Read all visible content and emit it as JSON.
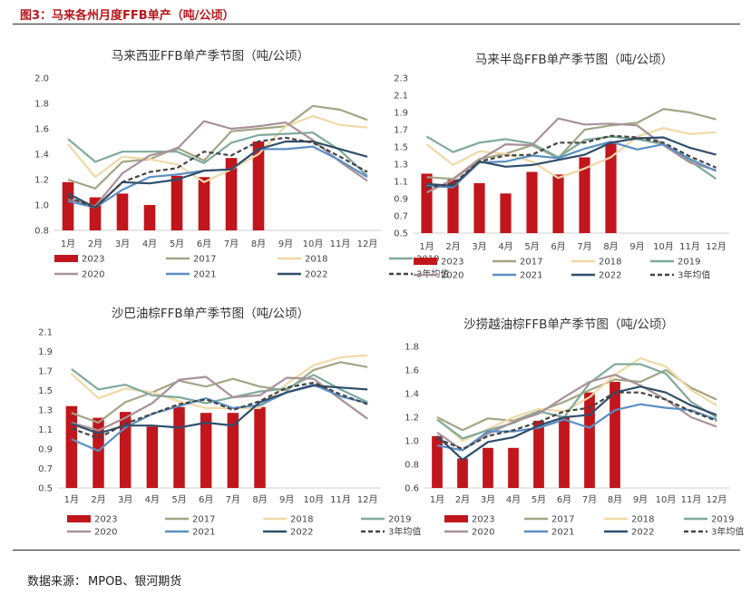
{
  "figure": {
    "title": "图3：马来各州月度FFB单产（吨/公顷）"
  },
  "source": {
    "label": "数据来源：",
    "value": "MPOB、银河期货"
  },
  "colors": {
    "2023": "#c0161c",
    "2017": "#a3a585",
    "2018": "#efd9a6",
    "2019": "#7faa9c",
    "2020": "#a89199",
    "2021": "#5b8fc3",
    "2022": "#2f4e6b",
    "avg": "#444444"
  },
  "chart_data": [
    {
      "type": "bar+line",
      "title": "马来西亚FFB单产季节图（吨/公顷）",
      "categories": [
        "1月",
        "2月",
        "3月",
        "4月",
        "5月",
        "6月",
        "7月",
        "8月",
        "9月",
        "10月",
        "11月",
        "12月"
      ],
      "ylim": [
        0.8,
        2.0
      ],
      "yticks": [
        "0.8",
        "1.0",
        "1.2",
        "1.4",
        "1.6",
        "1.8",
        "2.0"
      ],
      "bar_series": {
        "name": "2023",
        "values": [
          1.18,
          1.06,
          1.09,
          1.0,
          1.23,
          1.22,
          1.37,
          1.5
        ]
      },
      "series": [
        {
          "name": "2017",
          "values": [
            1.2,
            1.13,
            1.34,
            1.36,
            1.45,
            1.35,
            1.58,
            1.6,
            1.62,
            1.78,
            1.75,
            1.67
          ]
        },
        {
          "name": "2018",
          "values": [
            1.48,
            1.22,
            1.38,
            1.36,
            1.32,
            1.18,
            1.28,
            1.4,
            1.62,
            1.7,
            1.63,
            1.61
          ]
        },
        {
          "name": "2019",
          "values": [
            1.52,
            1.34,
            1.42,
            1.42,
            1.42,
            1.33,
            1.49,
            1.55,
            1.56,
            1.57,
            1.43,
            1.23
          ]
        },
        {
          "name": "2020",
          "values": [
            1.05,
            0.99,
            1.25,
            1.39,
            1.44,
            1.66,
            1.6,
            1.62,
            1.65,
            1.51,
            1.34,
            1.19
          ]
        },
        {
          "name": "2021",
          "values": [
            1.03,
            0.98,
            1.12,
            1.22,
            1.24,
            1.27,
            1.28,
            1.44,
            1.44,
            1.46,
            1.35,
            1.22
          ]
        },
        {
          "name": "2022",
          "values": [
            1.09,
            0.98,
            1.18,
            1.17,
            1.2,
            1.27,
            1.28,
            1.44,
            1.5,
            1.5,
            1.44,
            1.38
          ]
        },
        {
          "name": "3年均值",
          "values": [
            1.06,
            0.98,
            1.18,
            1.26,
            1.29,
            1.42,
            1.39,
            1.5,
            1.53,
            1.49,
            1.38,
            1.26
          ],
          "dashed": true
        }
      ],
      "legend": [
        "2023",
        "2017",
        "2018",
        "2019",
        "2020",
        "2021",
        "2022",
        "3年均值"
      ]
    },
    {
      "type": "bar+line",
      "title": "马来半岛FFB单产季节图（吨/公顷）",
      "categories": [
        "1月",
        "2月",
        "3月",
        "4月",
        "5月",
        "6月",
        "7月",
        "8月",
        "9月",
        "10月",
        "11月",
        "12月"
      ],
      "ylim": [
        0.5,
        2.3
      ],
      "yticks": [
        "0.5",
        "0.7",
        "0.9",
        "1.1",
        "1.3",
        "1.5",
        "1.7",
        "1.9",
        "2.1",
        "2.3"
      ],
      "bar_series": {
        "name": "2023",
        "values": [
          1.19,
          1.12,
          1.08,
          0.96,
          1.21,
          1.18,
          1.38,
          1.54
        ]
      },
      "series": [
        {
          "name": "2017",
          "values": [
            1.15,
            1.13,
            1.36,
            1.42,
            1.52,
            1.37,
            1.7,
            1.75,
            1.78,
            1.94,
            1.9,
            1.82
          ]
        },
        {
          "name": "2018",
          "values": [
            1.53,
            1.29,
            1.45,
            1.42,
            1.33,
            1.14,
            1.25,
            1.38,
            1.62,
            1.72,
            1.65,
            1.67
          ]
        },
        {
          "name": "2019",
          "values": [
            1.62,
            1.44,
            1.55,
            1.59,
            1.54,
            1.38,
            1.58,
            1.62,
            1.59,
            1.53,
            1.34,
            1.13
          ]
        },
        {
          "name": "2020",
          "values": [
            0.97,
            1.12,
            1.35,
            1.53,
            1.52,
            1.83,
            1.76,
            1.77,
            1.75,
            1.52,
            1.32,
            1.23
          ]
        },
        {
          "name": "2021",
          "values": [
            1.05,
            1.03,
            1.32,
            1.33,
            1.4,
            1.37,
            1.48,
            1.56,
            1.47,
            1.53,
            1.36,
            1.22
          ]
        },
        {
          "name": "2022",
          "values": [
            1.07,
            1.05,
            1.33,
            1.27,
            1.29,
            1.35,
            1.41,
            1.55,
            1.6,
            1.61,
            1.49,
            1.41
          ]
        },
        {
          "name": "3年均值",
          "values": [
            1.03,
            1.07,
            1.33,
            1.4,
            1.41,
            1.55,
            1.55,
            1.63,
            1.61,
            1.55,
            1.39,
            1.26
          ],
          "dashed": true
        }
      ],
      "legend": [
        "2023",
        "2017",
        "2018",
        "2019",
        "2020",
        "2021",
        "2022",
        "3年均值"
      ]
    },
    {
      "type": "bar+line",
      "title": "沙巴油棕FFB单产季节图（吨/公顷）",
      "categories": [
        "1月",
        "2月",
        "3月",
        "4月",
        "5月",
        "6月",
        "7月",
        "8月",
        "9月",
        "10月",
        "11月",
        "12月"
      ],
      "ylim": [
        0.5,
        2.1
      ],
      "yticks": [
        "0.5",
        "0.7",
        "0.9",
        "1.1",
        "1.3",
        "1.5",
        "1.7",
        "1.9",
        "2.1"
      ],
      "bar_series": {
        "name": "2023",
        "values": [
          1.34,
          1.22,
          1.28,
          1.13,
          1.33,
          1.27,
          1.27,
          1.33
        ]
      },
      "series": [
        {
          "name": "2017",
          "values": [
            1.27,
            1.17,
            1.38,
            1.48,
            1.6,
            1.54,
            1.62,
            1.54,
            1.5,
            1.71,
            1.79,
            1.74
          ]
        },
        {
          "name": "2018",
          "values": [
            1.67,
            1.42,
            1.52,
            1.48,
            1.39,
            1.32,
            1.32,
            1.32,
            1.57,
            1.76,
            1.84,
            1.86
          ]
        },
        {
          "name": "2019",
          "values": [
            1.72,
            1.51,
            1.56,
            1.45,
            1.43,
            1.37,
            1.43,
            1.49,
            1.52,
            1.66,
            1.51,
            1.38
          ]
        },
        {
          "name": "2020",
          "values": [
            1.17,
            1.09,
            1.22,
            1.37,
            1.61,
            1.64,
            1.43,
            1.45,
            1.63,
            1.62,
            1.41,
            1.21
          ]
        },
        {
          "name": "2021",
          "values": [
            1.0,
            0.88,
            1.12,
            1.26,
            1.34,
            1.42,
            1.32,
            1.35,
            1.48,
            1.56,
            1.44,
            1.37
          ]
        },
        {
          "name": "2022",
          "values": [
            1.16,
            1.06,
            1.14,
            1.14,
            1.12,
            1.17,
            1.14,
            1.38,
            1.48,
            1.55,
            1.53,
            1.51
          ]
        },
        {
          "name": "3年均值",
          "values": [
            1.11,
            1.01,
            1.16,
            1.26,
            1.36,
            1.41,
            1.3,
            1.39,
            1.53,
            1.58,
            1.46,
            1.36
          ],
          "dashed": true
        }
      ],
      "legend": [
        "2023",
        "2017",
        "2018",
        "2019",
        "2020",
        "2021",
        "2022",
        "3年均值"
      ]
    },
    {
      "type": "bar+line",
      "title": "沙捞越油棕FFB单产季节图（吨/公顷）",
      "categories": [
        "1月",
        "2月",
        "3月",
        "4月",
        "5月",
        "6月",
        "7月",
        "8月",
        "9月",
        "10月",
        "11月",
        "12月"
      ],
      "ylim": [
        0.6,
        1.8
      ],
      "yticks": [
        "0.6",
        "0.8",
        "1.0",
        "1.2",
        "1.4",
        "1.6",
        "1.8"
      ],
      "bar_series": {
        "name": "2023",
        "values": [
          1.04,
          0.85,
          0.94,
          0.94,
          1.17,
          1.2,
          1.41,
          1.5
        ]
      },
      "series": [
        {
          "name": "2017",
          "values": [
            1.2,
            1.09,
            1.19,
            1.17,
            1.25,
            1.33,
            1.43,
            1.52,
            1.5,
            1.6,
            1.45,
            1.35
          ]
        },
        {
          "name": "2018",
          "values": [
            1.19,
            1.0,
            1.1,
            1.2,
            1.27,
            1.25,
            1.37,
            1.56,
            1.7,
            1.63,
            1.43,
            1.3
          ]
        },
        {
          "name": "2019",
          "values": [
            1.18,
            1.02,
            1.09,
            1.15,
            1.25,
            1.2,
            1.49,
            1.65,
            1.65,
            1.57,
            1.33,
            1.2
          ]
        },
        {
          "name": "2020",
          "values": [
            1.07,
            0.92,
            1.06,
            1.16,
            1.23,
            1.37,
            1.5,
            1.56,
            1.47,
            1.35,
            1.2,
            1.12
          ]
        },
        {
          "name": "2021",
          "values": [
            0.96,
            0.92,
            1.08,
            1.08,
            1.11,
            1.18,
            1.11,
            1.26,
            1.31,
            1.28,
            1.26,
            1.18
          ]
        },
        {
          "name": "2022",
          "values": [
            1.04,
            0.84,
            0.99,
            1.03,
            1.13,
            1.2,
            1.22,
            1.41,
            1.46,
            1.41,
            1.3,
            1.22
          ]
        },
        {
          "name": "3年均值",
          "values": [
            1.02,
            0.93,
            1.04,
            1.09,
            1.16,
            1.25,
            1.28,
            1.41,
            1.41,
            1.35,
            1.25,
            1.17
          ],
          "dashed": true
        }
      ],
      "legend": [
        "2023",
        "2017",
        "2018",
        "2019",
        "2020",
        "2021",
        "2022",
        "3年均值"
      ]
    }
  ]
}
